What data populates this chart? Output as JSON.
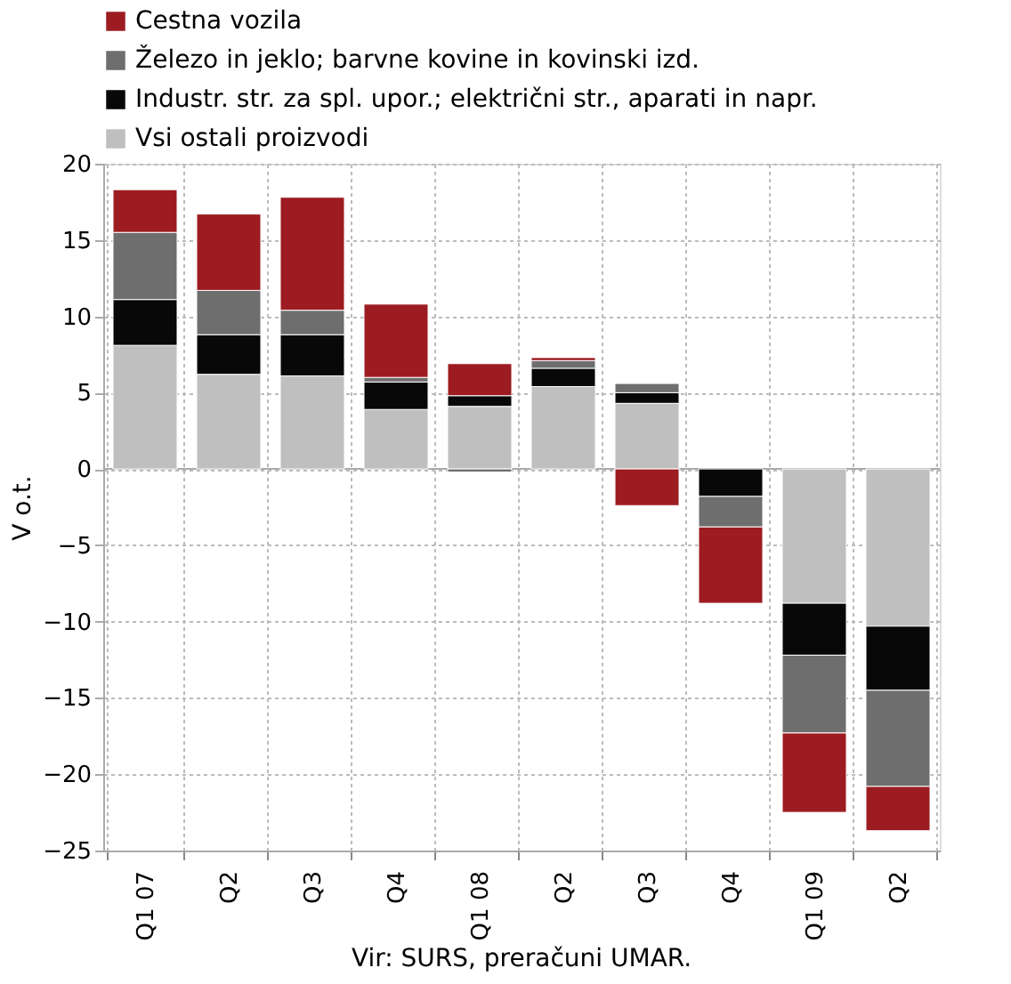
{
  "chart_data": {
    "type": "bar",
    "stacked": true,
    "ylabel": "V o.t.",
    "categories": [
      "Q1 07",
      "Q2",
      "Q3",
      "Q4",
      "Q1 08",
      "Q2",
      "Q3",
      "Q4",
      "Q1 09",
      "Q2"
    ],
    "series": [
      {
        "name": "Vsi ostali proizvodi",
        "color": "#bfbfbf",
        "values": [
          8.1,
          6.2,
          6.1,
          3.9,
          4.1,
          5.4,
          4.3,
          null,
          -8.8,
          -10.3
        ]
      },
      {
        "name": "Industr. str. za spl. upor.; električni str., aparati in napr.",
        "color": "#080808",
        "values": [
          3.0,
          2.6,
          2.7,
          1.8,
          0.7,
          1.2,
          0.7,
          -1.8,
          -3.4,
          -4.2
        ]
      },
      {
        "name": "Železo in jeklo; barvne kovine in kovinski izd.",
        "color": "#6e6e6e",
        "values": [
          4.4,
          2.9,
          1.6,
          0.3,
          -0.2,
          0.5,
          0.6,
          -2.0,
          -5.1,
          -6.3
        ]
      },
      {
        "name": "Cestna vozila",
        "color": "#9c1c21",
        "values": [
          2.8,
          5.0,
          7.4,
          4.8,
          2.1,
          0.2,
          -2.4,
          -5.0,
          -5.2,
          -2.9
        ]
      }
    ],
    "ylim": [
      -25,
      20
    ],
    "yticks": [
      -25,
      -20,
      -15,
      -10,
      -5,
      0,
      5,
      10,
      15,
      20
    ],
    "grid": true,
    "legend": "top left",
    "annotations": [
      "Vir: SURS, preračuni UMAR."
    ]
  }
}
